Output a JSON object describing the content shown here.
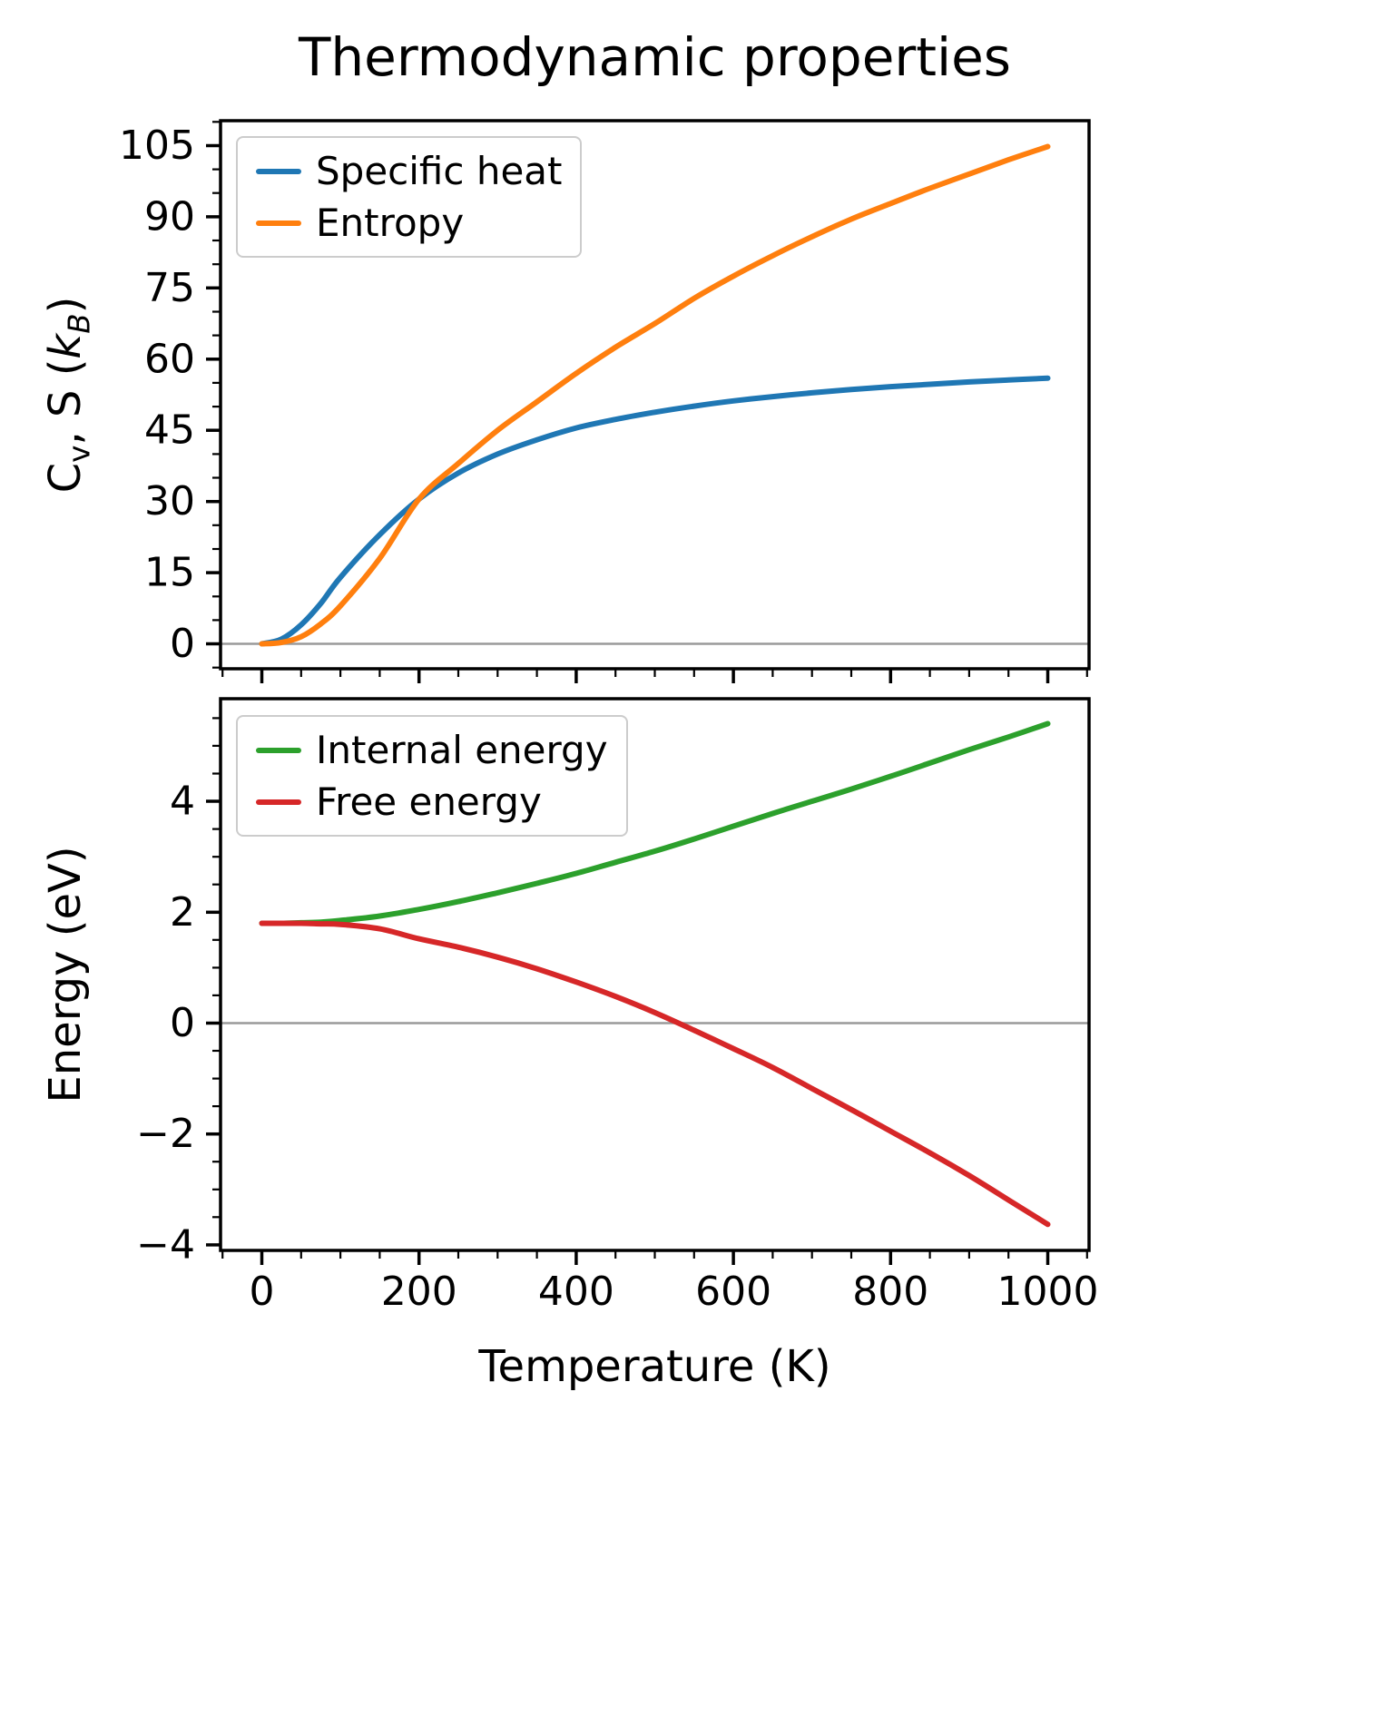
{
  "title": "Thermodynamic properties",
  "chart_data": [
    {
      "type": "line",
      "panel": "top",
      "ylabel": "C_v, S (k_B)",
      "ylabel_parts": [
        "C",
        "v",
        ", S (",
        "k",
        "B",
        ")"
      ],
      "xlabel": "",
      "xlim": [
        -52.5,
        1052.5
      ],
      "ylim": [
        -5.25,
        110.25
      ],
      "xticks": [
        0,
        200,
        400,
        600,
        800,
        1000
      ],
      "yticks": [
        0,
        15,
        30,
        45,
        60,
        75,
        90,
        105
      ],
      "legend_position": "upper-left",
      "grid": false,
      "zero_line": true,
      "x": [
        0,
        25,
        50,
        75,
        100,
        150,
        200,
        250,
        300,
        350,
        400,
        450,
        500,
        550,
        600,
        650,
        700,
        750,
        800,
        850,
        900,
        950,
        1000
      ],
      "series": [
        {
          "name": "Specific heat",
          "color": "#1f77b4",
          "values": [
            0,
            1,
            4,
            8.5,
            14,
            23,
            30.5,
            36,
            40,
            43,
            45.5,
            47.3,
            48.8,
            50.1,
            51.2,
            52.1,
            52.9,
            53.6,
            54.2,
            54.7,
            55.2,
            55.6,
            56
          ]
        },
        {
          "name": "Entropy",
          "color": "#ff7f0e",
          "values": [
            0,
            0.3,
            1.5,
            4.2,
            8,
            18,
            30.5,
            38,
            45,
            51,
            57,
            62.5,
            67.5,
            72.8,
            77.5,
            81.8,
            85.8,
            89.5,
            92.8,
            96,
            99,
            102,
            104.8
          ]
        }
      ]
    },
    {
      "type": "line",
      "panel": "bottom",
      "ylabel": "Energy (eV)",
      "xlabel": "Temperature (K)",
      "xlim": [
        -52.5,
        1052.5
      ],
      "ylim": [
        -4.1,
        5.85
      ],
      "xticks": [
        0,
        200,
        400,
        600,
        800,
        1000
      ],
      "yticks": [
        -4,
        -2,
        0,
        2,
        4
      ],
      "legend_position": "upper-left",
      "grid": false,
      "zero_line": true,
      "x": [
        0,
        25,
        50,
        75,
        100,
        150,
        200,
        250,
        300,
        350,
        400,
        450,
        500,
        550,
        600,
        650,
        700,
        750,
        800,
        850,
        900,
        950,
        1000
      ],
      "series": [
        {
          "name": "Internal energy",
          "color": "#2ca02c",
          "values": [
            1.8,
            1.8,
            1.81,
            1.82,
            1.85,
            1.93,
            2.05,
            2.19,
            2.35,
            2.52,
            2.7,
            2.9,
            3.1,
            3.32,
            3.55,
            3.78,
            4.0,
            4.22,
            4.45,
            4.69,
            4.93,
            5.16,
            5.4
          ]
        },
        {
          "name": "Free energy",
          "color": "#d62728",
          "values": [
            1.8,
            1.8,
            1.8,
            1.79,
            1.78,
            1.7,
            1.52,
            1.37,
            1.19,
            0.98,
            0.74,
            0.48,
            0.19,
            -0.13,
            -0.46,
            -0.8,
            -1.18,
            -1.56,
            -1.95,
            -2.34,
            -2.75,
            -3.19,
            -3.63
          ]
        }
      ]
    }
  ]
}
